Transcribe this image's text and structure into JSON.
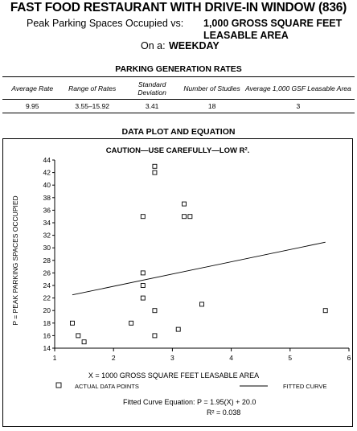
{
  "header": {
    "title": "FAST FOOD RESTAURANT WITH DRIVE-IN WINDOW (836)",
    "line1_prefix": "Peak Parking Spaces Occupied vs:",
    "line1_value": "1,000 GROSS SQUARE FEET",
    "line2_value": "LEASABLE AREA",
    "line3_prefix": "On a:",
    "line3_value": "WEEKDAY"
  },
  "rates_section": {
    "title": "PARKING GENERATION RATES",
    "columns": [
      "Average Rate",
      "Range of Rates",
      "Standard Deviation",
      "Number of Studies",
      "Average 1,000 GSF Leasable Area"
    ],
    "row": [
      "9.95",
      "3.55–15.92",
      "3.41",
      "18",
      "3"
    ]
  },
  "plot_section": {
    "title": "DATA PLOT AND EQUATION"
  },
  "chart_data": {
    "type": "scatter",
    "title": "CAUTION—USE CAREFULLY—LOW R².",
    "xlabel": "X = 1000 GROSS SQUARE FEET LEASABLE AREA",
    "ylabel": "P = PEAK PARKING SPACES OCCUPIED",
    "xlim": [
      1,
      6
    ],
    "ylim": [
      14,
      44
    ],
    "xticks": [
      "1",
      "2",
      "3",
      "4",
      "5",
      "6"
    ],
    "yticks": [
      "14",
      "16",
      "18",
      "20",
      "22",
      "24",
      "26",
      "28",
      "30",
      "32",
      "34",
      "36",
      "38",
      "40",
      "42",
      "44"
    ],
    "grid": false,
    "points": [
      {
        "x": 1.3,
        "y": 18
      },
      {
        "x": 1.4,
        "y": 16
      },
      {
        "x": 1.5,
        "y": 15
      },
      {
        "x": 2.3,
        "y": 18
      },
      {
        "x": 2.5,
        "y": 35
      },
      {
        "x": 2.5,
        "y": 26
      },
      {
        "x": 2.5,
        "y": 24
      },
      {
        "x": 2.5,
        "y": 22
      },
      {
        "x": 2.7,
        "y": 43
      },
      {
        "x": 2.7,
        "y": 42
      },
      {
        "x": 2.7,
        "y": 20
      },
      {
        "x": 2.7,
        "y": 16
      },
      {
        "x": 3.1,
        "y": 17
      },
      {
        "x": 3.2,
        "y": 37
      },
      {
        "x": 3.2,
        "y": 35
      },
      {
        "x": 3.3,
        "y": 35
      },
      {
        "x": 3.5,
        "y": 21
      },
      {
        "x": 5.6,
        "y": 20
      }
    ],
    "fitted_curve": {
      "x": [
        1.3,
        5.6
      ],
      "y": [
        22.5,
        30.9
      ]
    },
    "legend": {
      "position": "bottom",
      "points_label": "ACTUAL DATA POINTS",
      "curve_label": "FITTED CURVE"
    },
    "equation": "Fitted Curve Equation:  P = 1.95(X) + 20.0",
    "r_squared": "R² = 0.038"
  }
}
